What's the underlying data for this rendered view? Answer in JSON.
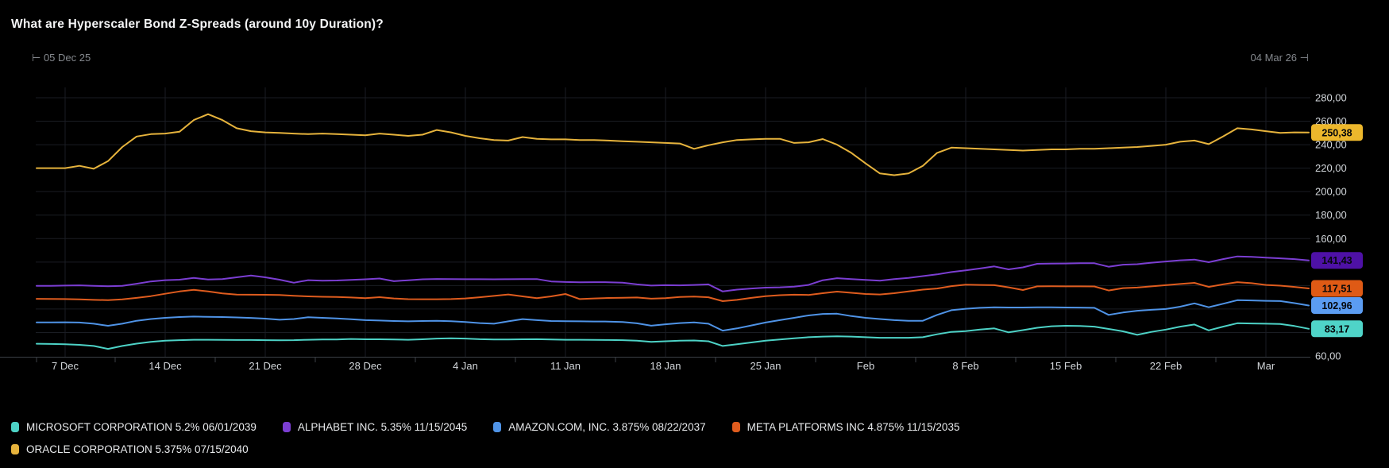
{
  "title": "What are Hyperscaler Bond Z-Spreads (around 10y Duration)?",
  "time_range": {
    "start_marker": "⊢",
    "start_label": "05 Dec 25",
    "end_label": "04 Mar 26",
    "end_marker": "⊣"
  },
  "colors": {
    "background": "#000000",
    "grid": "#1a1d23",
    "axis": "#3b4046",
    "tick_label": "#d2d6da",
    "range_label": "#84888d",
    "title": "#f4f5f6",
    "legend_text": "#e8eaec",
    "badge_text": "#05070a"
  },
  "chart_data": {
    "type": "line",
    "title": "What are Hyperscaler Bond Z-Spreads (around 10y Duration)?",
    "x_start_label": "05 Dec 25",
    "x_end_label": "04 Mar 26",
    "num_points": 90,
    "grid": true,
    "legend_position": "bottom",
    "value_format": "comma-decimal",
    "ylim": [
      60,
      280
    ],
    "y_step": 20,
    "y_ticks": [
      {
        "v": 280,
        "t": "280,00"
      },
      {
        "v": 260,
        "t": "260,00"
      },
      {
        "v": 240,
        "t": "240,00"
      },
      {
        "v": 220,
        "t": "220,00"
      },
      {
        "v": 200,
        "t": "200,00"
      },
      {
        "v": 180,
        "t": "180,00"
      },
      {
        "v": 160,
        "t": "160,00"
      },
      {
        "v": 60,
        "t": "60,00"
      }
    ],
    "x_ticks": [
      {
        "i": 2,
        "t": "7 Dec"
      },
      {
        "i": 9,
        "t": "14 Dec"
      },
      {
        "i": 16,
        "t": "21 Dec"
      },
      {
        "i": 23,
        "t": "28 Dec"
      },
      {
        "i": 30,
        "t": "4 Jan"
      },
      {
        "i": 37,
        "t": "11 Jan"
      },
      {
        "i": 44,
        "t": "18 Jan"
      },
      {
        "i": 51,
        "t": "25 Jan"
      },
      {
        "i": 58,
        "t": "Feb"
      },
      {
        "i": 65,
        "t": "8 Feb"
      },
      {
        "i": 72,
        "t": "15 Feb"
      },
      {
        "i": 79,
        "t": "22 Feb"
      },
      {
        "i": 86,
        "t": "Mar"
      }
    ],
    "series": [
      {
        "id": "microsoft",
        "name": "MICROSOFT CORPORATION 5.2% 06/01/2039",
        "color": "#4dd2c6",
        "badge_color": "#4fd4c8",
        "last_label": "83,17",
        "values": [
          70.4,
          70.2,
          70,
          69.5,
          68.5,
          66,
          68.5,
          70.5,
          72,
          73,
          73.5,
          73.8,
          73.8,
          73.7,
          73.6,
          73.6,
          73.5,
          73.4,
          73.5,
          73.8,
          74,
          74,
          74.5,
          74.2,
          74.2,
          74,
          73.8,
          74.2,
          74.8,
          75,
          74.8,
          74.3,
          74,
          74,
          74.2,
          74.3,
          74,
          73.8,
          73.8,
          73.7,
          73.6,
          73.5,
          73,
          72,
          72.5,
          73,
          73.2,
          72.5,
          68.5,
          70,
          71.5,
          73,
          74,
          75,
          76,
          76.5,
          76.8,
          76.5,
          76,
          75.5,
          75.5,
          75.5,
          76,
          78.5,
          80.5,
          81.2,
          82.5,
          83.5,
          80.1,
          82,
          84,
          85.3,
          85.7,
          85.5,
          85,
          83,
          81,
          78,
          80.5,
          82.5,
          85,
          86.8,
          81.8,
          85,
          87.9,
          87.7,
          87.5,
          87.3,
          85.5,
          83.17
        ]
      },
      {
        "id": "alphabet",
        "name": "ALPHABET INC. 5.35% 11/15/2045",
        "color": "#7b3ed2",
        "badge_color": "#4e11a6",
        "last_label": "141,43",
        "values": [
          119.7,
          119.8,
          120,
          120.2,
          119.8,
          119.4,
          119.8,
          121.5,
          123.5,
          124.6,
          125,
          126.5,
          125.2,
          125.5,
          127,
          128.5,
          127,
          125,
          122.4,
          124.6,
          124.2,
          124.3,
          124.8,
          125.3,
          126,
          123.7,
          124.5,
          125.3,
          125.6,
          125.5,
          125.4,
          125.4,
          125.3,
          125.4,
          125.5,
          125.5,
          123.5,
          123,
          122.8,
          122.9,
          122.8,
          122.5,
          121,
          120,
          120.3,
          120.2,
          120.5,
          121,
          115,
          116.5,
          117.5,
          118.2,
          118.5,
          119,
          120.5,
          124.5,
          126.3,
          125.5,
          124.8,
          124.2,
          125.5,
          126.5,
          128,
          129.5,
          131.5,
          133,
          134.5,
          136.3,
          133.8,
          135.5,
          138.5,
          138.7,
          138.8,
          139,
          139,
          136,
          137.8,
          138.2,
          139.5,
          140.5,
          141.5,
          142.1,
          139.9,
          142.5,
          144.8,
          144.5,
          143.8,
          143.2,
          142.5,
          141.43
        ]
      },
      {
        "id": "amazon",
        "name": "AMAZON.COM, INC. 3.875% 08/22/2037",
        "color": "#4f93e6",
        "badge_color": "#5b9cf2",
        "last_label": "102,96",
        "values": [
          88.6,
          88.6,
          88.7,
          88.5,
          87.5,
          85.7,
          87.5,
          90,
          91.5,
          92.5,
          93.2,
          93.6,
          93.4,
          93.2,
          92.8,
          92.4,
          91.8,
          90.9,
          91.5,
          93,
          92.5,
          92,
          91.3,
          90.5,
          90.2,
          89.8,
          89.5,
          89.8,
          90,
          89.6,
          89,
          88,
          87.5,
          89.5,
          91.4,
          90.5,
          89.8,
          89.6,
          89.5,
          89.4,
          89.3,
          89,
          87.8,
          85.8,
          87,
          88,
          88.6,
          87.5,
          81.6,
          83.5,
          86,
          88.5,
          90.5,
          92.5,
          94.5,
          95.8,
          96,
          94,
          92.5,
          91.5,
          90.5,
          90,
          90,
          95,
          99,
          100.2,
          101,
          101.5,
          101.3,
          101.3,
          101.4,
          101.4,
          101.3,
          101.2,
          101,
          95,
          97,
          98.5,
          99.3,
          100,
          102,
          104.8,
          101.5,
          104.5,
          107.5,
          107.3,
          107,
          106.8,
          105,
          102.96
        ]
      },
      {
        "id": "meta",
        "name": "META PLATFORMS INC 4.875% 11/15/2035",
        "color": "#df5c1e",
        "badge_color": "#df5a15",
        "last_label": "117,51",
        "values": [
          108.7,
          108.6,
          108.5,
          108.2,
          107.8,
          107.6,
          108.2,
          109.5,
          111,
          113,
          115,
          116.3,
          115,
          113.3,
          112.3,
          112.2,
          112.1,
          112,
          111.3,
          110.8,
          110.4,
          110.2,
          109.8,
          109.3,
          110.1,
          109,
          108.4,
          108.3,
          108.3,
          108.5,
          109,
          110,
          111.2,
          112.4,
          110.8,
          109.2,
          110.8,
          112.8,
          108.5,
          109,
          109.4,
          109.6,
          109.8,
          108.8,
          109.3,
          110.2,
          110.6,
          110,
          106.7,
          107.8,
          109.5,
          111,
          111.8,
          112.2,
          112,
          113.5,
          114.8,
          113.8,
          112.8,
          112.4,
          113.5,
          115,
          116.5,
          117.5,
          119.5,
          120.7,
          120.5,
          120.3,
          118.5,
          116.2,
          119.3,
          119.4,
          119.3,
          119.3,
          119.2,
          115.8,
          117.8,
          118.3,
          119.3,
          120.3,
          121.3,
          122.3,
          118.8,
          121,
          122.9,
          122,
          120.5,
          119.9,
          118.8,
          117.51
        ]
      },
      {
        "id": "oracle",
        "name": "ORACLE CORPORATION 5.375% 07/15/2040",
        "color": "#e6b33c",
        "badge_color": "#ecb72c",
        "last_label": "250,38",
        "values": [
          220,
          220,
          220,
          222,
          219.5,
          226,
          238,
          247,
          249,
          249.5,
          251,
          261,
          266,
          261,
          254,
          251.5,
          250.5,
          250,
          249.5,
          249,
          249.5,
          249,
          248.5,
          248,
          249.5,
          248.5,
          247.5,
          248.5,
          252.5,
          250.5,
          247.5,
          245.5,
          244,
          243.5,
          246.5,
          245,
          244.5,
          244.5,
          244,
          244,
          243.5,
          243,
          242.5,
          242,
          241.5,
          241,
          236.5,
          239.5,
          242,
          244,
          244.5,
          245,
          245,
          241.5,
          242,
          244.8,
          240,
          233,
          224,
          215.5,
          214,
          215.5,
          222,
          233,
          237.5,
          237,
          236.5,
          236,
          235.5,
          235,
          235.5,
          236,
          236,
          236.5,
          236.5,
          237,
          237.5,
          238,
          239,
          240,
          242.5,
          243.5,
          240.5,
          247,
          254,
          253,
          251.5,
          250,
          250.5,
          250.38
        ]
      }
    ]
  }
}
